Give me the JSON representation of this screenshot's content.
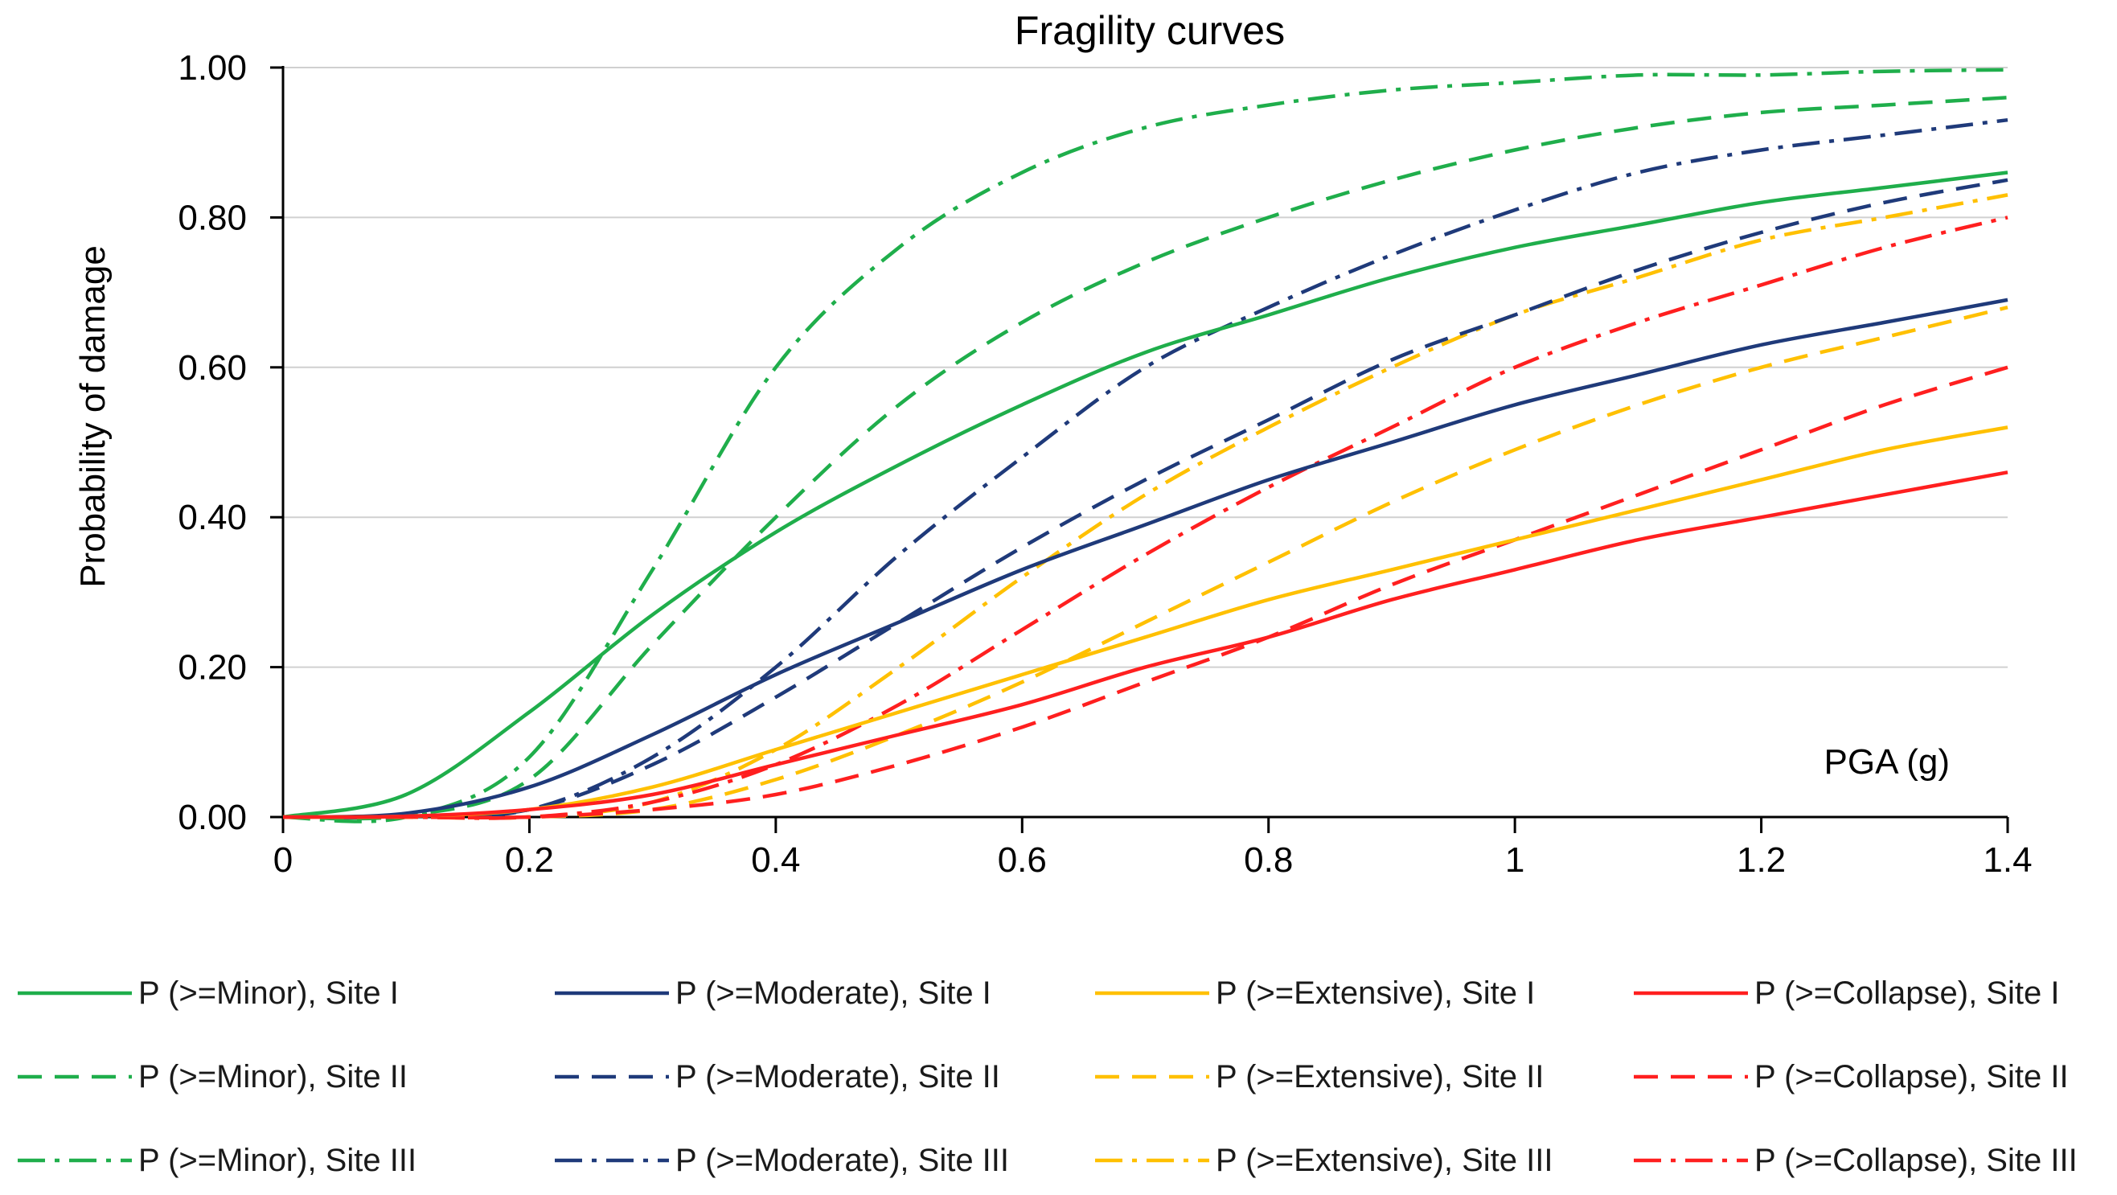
{
  "chart_data": {
    "type": "line",
    "title": "Fragility curves",
    "xlabel": "PGA (g)",
    "ylabel": "Probability of damage",
    "xlim": [
      0,
      1.4
    ],
    "ylim": [
      0,
      1.0
    ],
    "x_ticks": [
      "0",
      "0.2",
      "0.4",
      "0.6",
      "0.8",
      "1",
      "1.2",
      "1.4"
    ],
    "y_ticks": [
      "0.00",
      "0.20",
      "0.40",
      "0.60",
      "0.80",
      "1.00"
    ],
    "grid": "horizontal",
    "legend_position": "bottom",
    "x": [
      0,
      0.1,
      0.2,
      0.3,
      0.4,
      0.5,
      0.6,
      0.7,
      0.8,
      0.9,
      1.0,
      1.1,
      1.2,
      1.3,
      1.4
    ],
    "series": [
      {
        "name": "P (>=Minor), Site I",
        "color": "#1fae4b",
        "dash": "solid",
        "values": [
          0.0,
          0.03,
          0.14,
          0.27,
          0.38,
          0.47,
          0.55,
          0.62,
          0.67,
          0.72,
          0.76,
          0.79,
          0.82,
          0.84,
          0.86
        ]
      },
      {
        "name": "P (>=Moderate), Site I",
        "color": "#1f3a7a",
        "dash": "solid",
        "values": [
          0.0,
          0.005,
          0.04,
          0.11,
          0.19,
          0.26,
          0.33,
          0.39,
          0.45,
          0.5,
          0.55,
          0.59,
          0.63,
          0.66,
          0.69
        ]
      },
      {
        "name": "P (>=Extensive), Site I",
        "color": "#ffc000",
        "dash": "solid",
        "values": [
          0.0,
          0.001,
          0.01,
          0.04,
          0.09,
          0.14,
          0.19,
          0.24,
          0.29,
          0.33,
          0.37,
          0.41,
          0.45,
          0.49,
          0.52
        ]
      },
      {
        "name": "P (>=Collapse), Site I",
        "color": "#ff1f1f",
        "dash": "solid",
        "values": [
          0.0,
          0.001,
          0.01,
          0.03,
          0.07,
          0.11,
          0.15,
          0.2,
          0.24,
          0.29,
          0.33,
          0.37,
          0.4,
          0.43,
          0.46
        ]
      },
      {
        "name": "P (>=Minor), Site II",
        "color": "#1fae4b",
        "dash": "dash",
        "values": [
          0.0,
          0.002,
          0.05,
          0.23,
          0.4,
          0.55,
          0.66,
          0.74,
          0.8,
          0.85,
          0.89,
          0.92,
          0.94,
          0.95,
          0.96
        ]
      },
      {
        "name": "P (>=Moderate), Site II",
        "color": "#1f3a7a",
        "dash": "dash",
        "values": [
          0.0,
          0.001,
          0.01,
          0.07,
          0.16,
          0.26,
          0.36,
          0.45,
          0.53,
          0.61,
          0.67,
          0.73,
          0.78,
          0.82,
          0.85
        ]
      },
      {
        "name": "P (>=Extensive), Site II",
        "color": "#ffc000",
        "dash": "dash",
        "values": [
          0.0,
          0.0,
          0.0,
          0.01,
          0.05,
          0.11,
          0.18,
          0.26,
          0.34,
          0.42,
          0.49,
          0.55,
          0.6,
          0.64,
          0.68
        ]
      },
      {
        "name": "P (>=Collapse), Site II",
        "color": "#ff1f1f",
        "dash": "dash",
        "values": [
          0.0,
          0.0,
          0.0,
          0.01,
          0.03,
          0.07,
          0.12,
          0.18,
          0.24,
          0.31,
          0.37,
          0.43,
          0.49,
          0.55,
          0.6
        ]
      },
      {
        "name": "P (>=Minor), Site III",
        "color": "#1fae4b",
        "dash": "dashdot",
        "values": [
          0.0,
          0.0,
          0.08,
          0.33,
          0.6,
          0.76,
          0.86,
          0.92,
          0.95,
          0.97,
          0.98,
          0.99,
          0.99,
          0.995,
          0.997
        ]
      },
      {
        "name": "P (>=Moderate), Site III",
        "color": "#1f3a7a",
        "dash": "dashdot",
        "values": [
          0.0,
          0.0,
          0.01,
          0.08,
          0.2,
          0.35,
          0.48,
          0.6,
          0.68,
          0.75,
          0.81,
          0.86,
          0.89,
          0.91,
          0.93
        ]
      },
      {
        "name": "P (>=Extensive), Site III",
        "color": "#ffc000",
        "dash": "dashdot",
        "values": [
          0.0,
          0.0,
          0.0,
          0.02,
          0.09,
          0.2,
          0.32,
          0.43,
          0.52,
          0.6,
          0.67,
          0.72,
          0.77,
          0.8,
          0.83
        ]
      },
      {
        "name": "P (>=Collapse), Site III",
        "color": "#ff1f1f",
        "dash": "dashdot",
        "values": [
          0.0,
          0.0,
          0.0,
          0.02,
          0.07,
          0.15,
          0.25,
          0.35,
          0.44,
          0.52,
          0.6,
          0.66,
          0.71,
          0.76,
          0.8
        ]
      }
    ]
  }
}
